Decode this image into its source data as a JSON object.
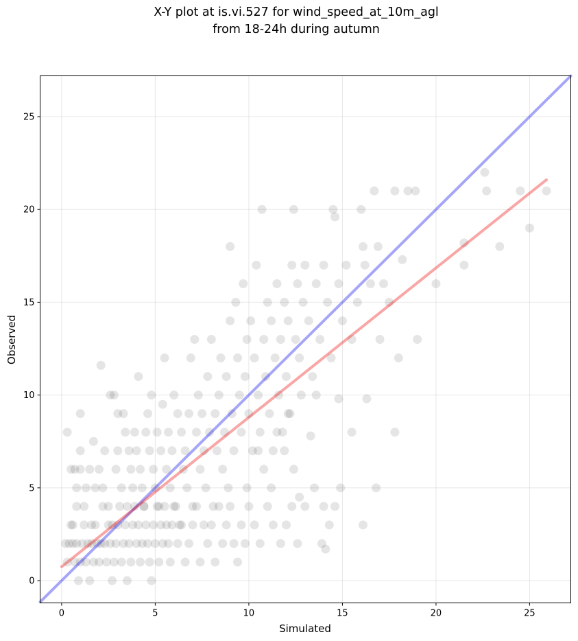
{
  "chart_data": {
    "type": "scatter",
    "title_lines": [
      "X-Y plot at is.vi.527 for wind_speed_at_10m_agl",
      "from 18-24h during autumn"
    ],
    "xlabel": "Simulated",
    "ylabel": "Observed",
    "xlim": [
      -1.15,
      27.2
    ],
    "ylim": [
      -1.2,
      27.2
    ],
    "xticks": [
      0,
      5,
      10,
      15,
      20,
      25
    ],
    "yticks": [
      0,
      5,
      10,
      15,
      20,
      25
    ],
    "grid": true,
    "marker_color": "#000000",
    "marker_alpha": 0.1,
    "lines": [
      {
        "kind": "identity",
        "color": "#0000ee",
        "alpha": 0.35,
        "x": [
          -1.15,
          27.2
        ],
        "y": [
          -1.15,
          27.2
        ]
      },
      {
        "kind": "regression",
        "color": "#ee0000",
        "alpha": 0.35,
        "x": [
          0,
          25.9
        ],
        "y": [
          0.75,
          21.6
        ]
      }
    ],
    "points": [
      [
        0.3,
        8
      ],
      [
        0.5,
        6
      ],
      [
        0.6,
        3
      ],
      [
        0.7,
        6
      ],
      [
        0.8,
        4
      ],
      [
        0.8,
        5
      ],
      [
        1.0,
        6
      ],
      [
        1.0,
        9
      ],
      [
        1.0,
        7
      ],
      [
        1.2,
        4
      ],
      [
        1.3,
        5
      ],
      [
        1.5,
        6
      ],
      [
        1.6,
        3
      ],
      [
        1.7,
        7.5
      ],
      [
        1.8,
        5
      ],
      [
        2.0,
        6
      ],
      [
        2.1,
        11.6
      ],
      [
        2.2,
        5
      ],
      [
        2.3,
        7
      ],
      [
        2.5,
        4
      ],
      [
        2.6,
        10
      ],
      [
        2.7,
        3
      ],
      [
        2.8,
        10
      ],
      [
        2.9,
        6
      ],
      [
        3.0,
        9
      ],
      [
        3.0,
        7
      ],
      [
        3.2,
        5
      ],
      [
        3.3,
        9
      ],
      [
        3.4,
        8
      ],
      [
        3.5,
        4
      ],
      [
        3.6,
        7
      ],
      [
        3.7,
        6
      ],
      [
        3.8,
        5
      ],
      [
        3.9,
        8
      ],
      [
        4.0,
        7
      ],
      [
        4.1,
        11
      ],
      [
        4.2,
        6
      ],
      [
        4.3,
        5
      ],
      [
        4.4,
        4
      ],
      [
        4.5,
        8
      ],
      [
        4.6,
        9
      ],
      [
        4.7,
        7
      ],
      [
        4.8,
        10
      ],
      [
        4.9,
        6
      ],
      [
        5.0,
        5
      ],
      [
        5.1,
        8
      ],
      [
        5.2,
        4
      ],
      [
        5.3,
        7
      ],
      [
        5.4,
        9.5
      ],
      [
        5.5,
        12
      ],
      [
        5.6,
        6
      ],
      [
        5.7,
        8
      ],
      [
        5.8,
        5
      ],
      [
        5.9,
        7
      ],
      [
        6.0,
        10
      ],
      [
        6.1,
        4
      ],
      [
        6.2,
        9
      ],
      [
        6.3,
        3
      ],
      [
        6.4,
        8
      ],
      [
        6.5,
        6
      ],
      [
        6.6,
        7
      ],
      [
        6.7,
        5
      ],
      [
        6.8,
        9
      ],
      [
        6.9,
        12
      ],
      [
        7.0,
        4
      ],
      [
        7.1,
        13
      ],
      [
        7.2,
        8
      ],
      [
        7.3,
        10
      ],
      [
        7.4,
        6
      ],
      [
        7.5,
        9
      ],
      [
        7.6,
        7
      ],
      [
        7.7,
        5
      ],
      [
        7.8,
        11
      ],
      [
        7.9,
        8
      ],
      [
        8.0,
        13
      ],
      [
        8.1,
        4
      ],
      [
        8.2,
        9
      ],
      [
        8.3,
        7
      ],
      [
        8.4,
        10
      ],
      [
        8.5,
        12
      ],
      [
        8.6,
        6
      ],
      [
        8.7,
        8
      ],
      [
        8.8,
        11
      ],
      [
        8.9,
        5
      ],
      [
        9.0,
        14
      ],
      [
        9.0,
        18
      ],
      [
        9.1,
        9
      ],
      [
        9.2,
        7
      ],
      [
        9.3,
        15
      ],
      [
        9.4,
        12
      ],
      [
        9.5,
        10
      ],
      [
        9.6,
        8
      ],
      [
        9.7,
        16
      ],
      [
        9.8,
        11
      ],
      [
        9.9,
        13
      ],
      [
        10.0,
        9
      ],
      [
        10.1,
        14
      ],
      [
        10.2,
        7
      ],
      [
        10.3,
        12
      ],
      [
        10.4,
        17
      ],
      [
        10.5,
        10
      ],
      [
        10.6,
        8
      ],
      [
        10.7,
        20
      ],
      [
        10.8,
        13
      ],
      [
        10.9,
        11
      ],
      [
        11.0,
        15
      ],
      [
        11.1,
        9
      ],
      [
        11.2,
        14
      ],
      [
        11.3,
        7
      ],
      [
        11.4,
        12
      ],
      [
        11.5,
        16
      ],
      [
        11.6,
        10
      ],
      [
        11.7,
        13
      ],
      [
        11.8,
        8
      ],
      [
        11.9,
        15
      ],
      [
        12.0,
        11
      ],
      [
        12.1,
        14
      ],
      [
        12.2,
        9
      ],
      [
        12.3,
        17
      ],
      [
        12.4,
        20
      ],
      [
        12.5,
        13
      ],
      [
        12.6,
        16
      ],
      [
        12.7,
        12
      ],
      [
        12.8,
        10
      ],
      [
        12.9,
        15
      ],
      [
        13.0,
        17
      ],
      [
        13.2,
        14
      ],
      [
        13.4,
        11
      ],
      [
        13.6,
        16
      ],
      [
        13.8,
        13
      ],
      [
        14.0,
        17
      ],
      [
        14.2,
        15
      ],
      [
        14.4,
        12
      ],
      [
        14.5,
        20
      ],
      [
        14.6,
        19.6
      ],
      [
        14.8,
        16
      ],
      [
        15.0,
        14
      ],
      [
        15.2,
        17
      ],
      [
        15.5,
        13
      ],
      [
        15.8,
        15
      ],
      [
        16.0,
        20
      ],
      [
        16.1,
        18
      ],
      [
        16.2,
        17
      ],
      [
        16.5,
        16
      ],
      [
        16.7,
        21
      ],
      [
        16.9,
        18
      ],
      [
        17.0,
        13
      ],
      [
        17.2,
        16
      ],
      [
        17.5,
        15
      ],
      [
        17.8,
        21
      ],
      [
        18.0,
        12
      ],
      [
        18.2,
        17.3
      ],
      [
        18.5,
        21
      ],
      [
        18.9,
        21
      ],
      [
        19.0,
        13
      ],
      [
        20.0,
        16
      ],
      [
        21.5,
        17
      ],
      [
        21.5,
        18.2
      ],
      [
        22.6,
        22
      ],
      [
        22.7,
        21
      ],
      [
        23.4,
        18
      ],
      [
        24.5,
        21
      ],
      [
        25.0,
        19
      ],
      [
        25.9,
        21
      ],
      [
        0.2,
        2
      ],
      [
        0.3,
        1
      ],
      [
        0.4,
        2
      ],
      [
        0.5,
        3
      ],
      [
        0.6,
        2
      ],
      [
        0.7,
        1
      ],
      [
        0.8,
        2
      ],
      [
        0.9,
        0
      ],
      [
        1.0,
        1
      ],
      [
        1.1,
        2
      ],
      [
        1.2,
        3
      ],
      [
        1.3,
        1
      ],
      [
        1.4,
        2
      ],
      [
        1.5,
        0
      ],
      [
        1.6,
        2
      ],
      [
        1.7,
        1
      ],
      [
        1.8,
        3
      ],
      [
        1.9,
        2
      ],
      [
        2.0,
        1
      ],
      [
        2.1,
        2
      ],
      [
        2.2,
        4
      ],
      [
        2.3,
        2
      ],
      [
        2.4,
        1
      ],
      [
        2.5,
        3
      ],
      [
        2.6,
        2
      ],
      [
        2.7,
        0
      ],
      [
        2.8,
        1
      ],
      [
        2.9,
        2
      ],
      [
        3.0,
        3
      ],
      [
        3.1,
        4
      ],
      [
        3.2,
        1
      ],
      [
        3.3,
        2
      ],
      [
        3.4,
        3
      ],
      [
        3.5,
        0
      ],
      [
        3.6,
        2
      ],
      [
        3.7,
        1
      ],
      [
        3.8,
        3
      ],
      [
        3.9,
        4
      ],
      [
        4.0,
        2
      ],
      [
        4.1,
        3
      ],
      [
        4.2,
        1
      ],
      [
        4.3,
        2
      ],
      [
        4.4,
        4
      ],
      [
        4.5,
        3
      ],
      [
        4.6,
        2
      ],
      [
        4.7,
        1
      ],
      [
        4.8,
        0
      ],
      [
        4.9,
        3
      ],
      [
        5.0,
        2
      ],
      [
        5.1,
        4
      ],
      [
        5.2,
        1
      ],
      [
        5.3,
        3
      ],
      [
        5.4,
        2
      ],
      [
        5.5,
        4
      ],
      [
        5.6,
        3
      ],
      [
        5.7,
        2
      ],
      [
        5.8,
        1
      ],
      [
        5.9,
        3
      ],
      [
        6.0,
        4
      ],
      [
        6.2,
        2
      ],
      [
        6.4,
        3
      ],
      [
        6.6,
        1
      ],
      [
        6.8,
        2
      ],
      [
        7.0,
        3
      ],
      [
        7.2,
        4
      ],
      [
        7.4,
        1
      ],
      [
        7.6,
        3
      ],
      [
        7.8,
        2
      ],
      [
        8.0,
        3
      ],
      [
        8.2,
        1
      ],
      [
        8.4,
        4
      ],
      [
        8.6,
        2
      ],
      [
        8.8,
        3
      ],
      [
        9.0,
        4
      ],
      [
        9.2,
        2
      ],
      [
        9.4,
        1
      ],
      [
        9.6,
        3
      ],
      [
        9.8,
        2
      ],
      [
        10.0,
        4
      ],
      [
        10.3,
        3
      ],
      [
        10.6,
        2
      ],
      [
        11.0,
        4
      ],
      [
        11.3,
        3
      ],
      [
        11.7,
        2
      ],
      [
        12.0,
        3
      ],
      [
        12.3,
        4
      ],
      [
        12.6,
        2
      ],
      [
        13.0,
        4
      ],
      [
        13.5,
        5
      ],
      [
        14.0,
        4
      ],
      [
        14.3,
        3
      ],
      [
        14.6,
        4
      ],
      [
        14.9,
        5
      ],
      [
        11.2,
        5
      ],
      [
        12.4,
        6
      ],
      [
        13.6,
        10
      ],
      [
        14.8,
        9.8
      ],
      [
        15.5,
        8
      ],
      [
        16.3,
        9.8
      ],
      [
        16.1,
        3
      ],
      [
        16.8,
        5
      ],
      [
        17.8,
        8
      ],
      [
        13.3,
        7.8
      ],
      [
        12.1,
        9
      ],
      [
        11.5,
        8
      ],
      [
        10.8,
        6
      ],
      [
        9.9,
        5
      ],
      [
        10.5,
        7
      ],
      [
        11.9,
        7
      ],
      [
        12.7,
        4.5
      ],
      [
        13.9,
        2
      ],
      [
        14.1,
        1.7
      ]
    ]
  }
}
